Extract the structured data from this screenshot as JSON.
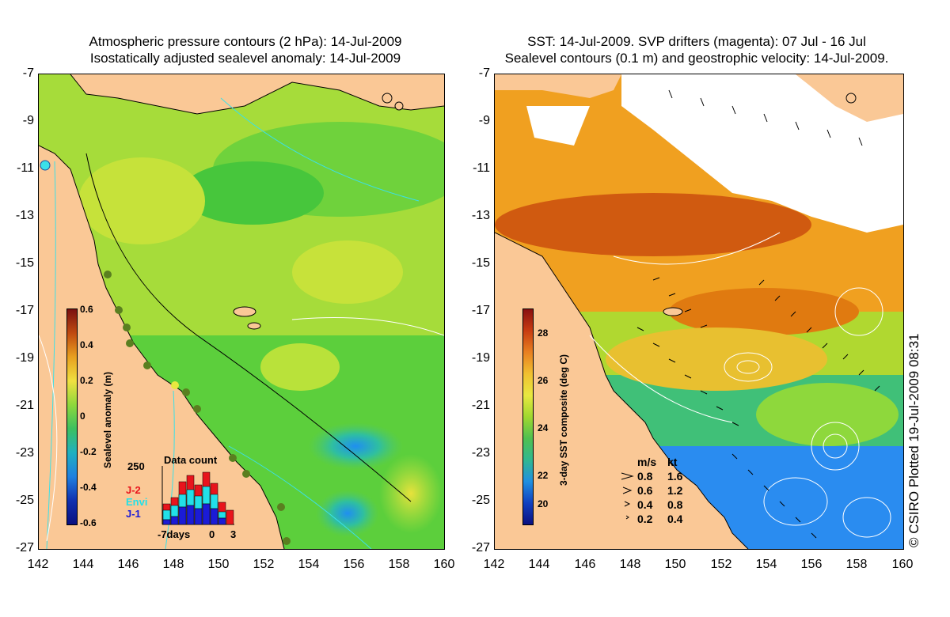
{
  "left_panel": {
    "title_line1": "Atmospheric pressure contours (2 hPa): 14-Jul-2009",
    "title_line2": "Isostatically adjusted sealevel anomaly: 14-Jul-2009",
    "colorbar": {
      "label": "Sealevel anomaly (m)",
      "ticks": [
        "0.6",
        "0.4",
        "0.2",
        "0",
        "-0.2",
        "-0.4",
        "-0.6"
      ]
    },
    "data_count": {
      "title": "Data count",
      "ymax_label": "250",
      "legend": [
        {
          "name": "J-2",
          "color": "#e8141c"
        },
        {
          "name": "Envi",
          "color": "#22e0e8"
        },
        {
          "name": "J-1",
          "color": "#1b1bd6"
        }
      ],
      "x_labels": [
        "-7days",
        "0",
        "3"
      ]
    }
  },
  "right_panel": {
    "title_line1": "SST: 14-Jul-2009. SVP drifters (magenta): 07 Jul - 16 Jul",
    "title_line2": "Sealevel contours (0.1 m) and geostrophic velocity: 14-Jul-2009.",
    "colorbar": {
      "label": "3-day SST composite (deg C)",
      "ticks": [
        "28",
        "26",
        "24",
        "22",
        "20"
      ]
    },
    "speed_legend": {
      "header_ms": "m/s",
      "header_kt": "kt",
      "rows": [
        {
          "ms": "0.8",
          "kt": "1.6"
        },
        {
          "ms": "0.6",
          "kt": "1.2"
        },
        {
          "ms": "0.4",
          "kt": "0.8"
        },
        {
          "ms": "0.2",
          "kt": "0.4"
        }
      ]
    },
    "credit": "© CSIRO Plotted 19-Jul-2009 08:31"
  },
  "axes": {
    "y_ticks": [
      "-7",
      "-9",
      "-11",
      "-13",
      "-15",
      "-17",
      "-19",
      "-21",
      "-23",
      "-25",
      "-27"
    ],
    "x_ticks": [
      "142",
      "144",
      "146",
      "148",
      "150",
      "152",
      "154",
      "156",
      "158",
      "160"
    ]
  },
  "colors": {
    "land": "#fac896",
    "ocean_green": "#5ccf3c",
    "ocean_yellowgreen": "#b9e23a",
    "sst_orange": "#f0a020",
    "sst_blue": "#2a8cf0",
    "contour_cyan": "#3be0e8",
    "contour_white": "#ffffff"
  }
}
